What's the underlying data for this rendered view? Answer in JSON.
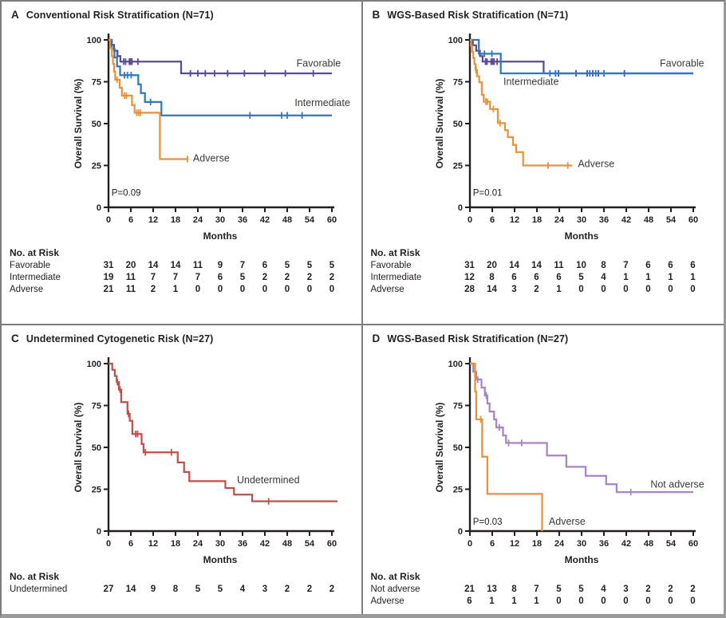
{
  "chart_data": [
    {
      "panel_label": "A",
      "title": "Conventional Risk Stratification (N=71)",
      "type": "line",
      "subtype": "kaplan-meier",
      "xlabel": "Months",
      "ylabel": "Overall Survival (%)",
      "xlim": [
        0,
        60
      ],
      "xticks": [
        0,
        6,
        12,
        18,
        24,
        30,
        36,
        42,
        48,
        54,
        60
      ],
      "ylim": [
        0,
        100
      ],
      "yticks": [
        0,
        25,
        50,
        75,
        100
      ],
      "grid": false,
      "p_value": "P=0.09",
      "p_pos": [
        0.8,
        7
      ],
      "series": [
        {
          "name": "Favorable",
          "color": "#5b4a97",
          "steps": [
            [
              0,
              100
            ],
            [
              0.7,
              97
            ],
            [
              1.5,
              93.5
            ],
            [
              2.4,
              90.3
            ],
            [
              3.2,
              87
            ],
            [
              19.5,
              80
            ]
          ],
          "end": 60,
          "censors": [
            [
              4.1,
              87
            ],
            [
              4.6,
              87
            ],
            [
              5.6,
              87
            ],
            [
              5.9,
              87
            ],
            [
              6.3,
              87
            ],
            [
              7.9,
              87
            ],
            [
              22,
              80
            ],
            [
              24,
              80
            ],
            [
              26,
              80
            ],
            [
              28.5,
              80
            ],
            [
              32,
              80
            ],
            [
              36.5,
              80
            ],
            [
              42,
              80
            ],
            [
              47.5,
              80
            ],
            [
              55,
              80
            ]
          ],
          "label_pos": [
            50.5,
            84
          ]
        },
        {
          "name": "Intermediate",
          "color": "#2e78bf",
          "steps": [
            [
              0,
              100
            ],
            [
              0.9,
              94.7
            ],
            [
              1.6,
              89.5
            ],
            [
              2.3,
              84.2
            ],
            [
              3.1,
              78.9
            ],
            [
              8,
              73.5
            ],
            [
              8.7,
              68.2
            ],
            [
              9.8,
              62.9
            ],
            [
              14.2,
              54.9
            ]
          ],
          "end": 60,
          "censors": [
            [
              4.3,
              78.9
            ],
            [
              5.1,
              78.9
            ],
            [
              6.1,
              78.9
            ],
            [
              11.3,
              62.9
            ],
            [
              38,
              54.9
            ],
            [
              46.5,
              54.9
            ],
            [
              48,
              54.9
            ],
            [
              52,
              54.9
            ]
          ],
          "label_pos": [
            50,
            60.5
          ]
        },
        {
          "name": "Adverse",
          "color": "#e8923e",
          "steps": [
            [
              0,
              100
            ],
            [
              0.4,
              95.2
            ],
            [
              0.9,
              90.4
            ],
            [
              1.2,
              85.7
            ],
            [
              1.5,
              81
            ],
            [
              1.8,
              76.2
            ],
            [
              3,
              71.4
            ],
            [
              3.6,
              66.7
            ],
            [
              6.3,
              61.1
            ],
            [
              7,
              56.5
            ],
            [
              13.8,
              28.8
            ]
          ],
          "end": 21.5,
          "censors": [
            [
              2.3,
              76.2
            ],
            [
              4.3,
              66.7
            ],
            [
              4.8,
              66.7
            ],
            [
              7.6,
              56.5
            ],
            [
              8.1,
              56.5
            ],
            [
              8.6,
              56.5
            ],
            [
              21.2,
              28.8
            ]
          ],
          "label_pos": [
            22.7,
            27.5
          ]
        }
      ],
      "risk_table": {
        "heading": "No. at Risk",
        "rows": [
          {
            "label": "Favorable",
            "values": [
              31,
              20,
              14,
              14,
              11,
              9,
              7,
              6,
              5,
              5,
              5
            ]
          },
          {
            "label": "Intermediate",
            "values": [
              19,
              11,
              7,
              7,
              7,
              6,
              5,
              2,
              2,
              2,
              2
            ]
          },
          {
            "label": "Adverse",
            "values": [
              21,
              11,
              2,
              1,
              0,
              0,
              0,
              0,
              0,
              0,
              0
            ]
          }
        ]
      }
    },
    {
      "panel_label": "B",
      "title": "WGS-Based Risk Stratification (N=71)",
      "type": "line",
      "subtype": "kaplan-meier",
      "xlabel": "Months",
      "ylabel": "Overall Survival (%)",
      "xlim": [
        0,
        60
      ],
      "xticks": [
        0,
        6,
        12,
        18,
        24,
        30,
        36,
        42,
        48,
        54,
        60
      ],
      "ylim": [
        0,
        100
      ],
      "yticks": [
        0,
        25,
        50,
        75,
        100
      ],
      "grid": false,
      "p_value": "P=0.01",
      "p_pos": [
        0.8,
        7
      ],
      "series": [
        {
          "name": "Favorable",
          "color": "#5b4a97",
          "steps": [
            [
              0,
              100
            ],
            [
              0.8,
              96.8
            ],
            [
              1.7,
              93.5
            ],
            [
              2.7,
              90.3
            ],
            [
              3.4,
              87
            ],
            [
              19.8,
              80
            ]
          ],
          "end": 60,
          "censors": [
            [
              4.2,
              87
            ],
            [
              4.6,
              87
            ],
            [
              5.7,
              87
            ],
            [
              6.1,
              87
            ],
            [
              6.5,
              87
            ],
            [
              7.3,
              87
            ],
            [
              23.8,
              80
            ],
            [
              28.5,
              80
            ],
            [
              31.5,
              80
            ],
            [
              33,
              80
            ],
            [
              34.5,
              80
            ],
            [
              41.5,
              80
            ]
          ],
          "label_pos": [
            51,
            84
          ]
        },
        {
          "name": "Intermediate",
          "color": "#2e78bf",
          "steps": [
            [
              0,
              100
            ],
            [
              2.4,
              91.7
            ],
            [
              8.3,
              80
            ]
          ],
          "end": 60,
          "censors": [
            [
              3.9,
              91.7
            ],
            [
              5.9,
              91.7
            ],
            [
              21.5,
              80
            ],
            [
              23,
              80
            ],
            [
              32.2,
              80
            ],
            [
              33.8,
              80
            ],
            [
              36,
              80
            ]
          ],
          "label_pos": [
            9,
            73
          ]
        },
        {
          "name": "Adverse",
          "color": "#e8923e",
          "steps": [
            [
              0,
              100
            ],
            [
              0.3,
              96.4
            ],
            [
              0.6,
              92.8
            ],
            [
              0.9,
              89.2
            ],
            [
              1.2,
              85.6
            ],
            [
              1.5,
              81.9
            ],
            [
              1.9,
              78.3
            ],
            [
              2.5,
              74.6
            ],
            [
              3.2,
              67.2
            ],
            [
              3.7,
              63.1
            ],
            [
              5.4,
              58.7
            ],
            [
              7.5,
              50.3
            ],
            [
              9.4,
              46.1
            ],
            [
              10.2,
              41.9
            ],
            [
              11.6,
              37.3
            ],
            [
              12.4,
              33
            ],
            [
              14.3,
              25
            ]
          ],
          "end": 27.5,
          "censors": [
            [
              1.7,
              81.9
            ],
            [
              4.3,
              63.1
            ],
            [
              4.7,
              63.1
            ],
            [
              6.3,
              58.7
            ],
            [
              8.1,
              50.3
            ],
            [
              21,
              25
            ],
            [
              26.3,
              25
            ]
          ],
          "label_pos": [
            29,
            24
          ]
        }
      ],
      "risk_table": {
        "heading": "No. at Risk",
        "rows": [
          {
            "label": "Favorable",
            "values": [
              31,
              20,
              14,
              14,
              11,
              10,
              8,
              7,
              6,
              6,
              6
            ]
          },
          {
            "label": "Intermediate",
            "values": [
              12,
              8,
              6,
              6,
              6,
              5,
              4,
              1,
              1,
              1,
              1
            ]
          },
          {
            "label": "Adverse",
            "values": [
              28,
              14,
              3,
              2,
              1,
              0,
              0,
              0,
              0,
              0,
              0
            ]
          }
        ]
      }
    },
    {
      "panel_label": "C",
      "title": "Undetermined Cytogenetic Risk (N=27)",
      "type": "line",
      "subtype": "kaplan-meier",
      "xlabel": "Months",
      "ylabel": "Overall Survival (%)",
      "xlim": [
        0,
        60
      ],
      "xticks": [
        0,
        6,
        12,
        18,
        24,
        30,
        36,
        42,
        48,
        54,
        60
      ],
      "ylim": [
        0,
        100
      ],
      "yticks": [
        0,
        25,
        50,
        75,
        100
      ],
      "grid": false,
      "p_value": "",
      "p_pos": [
        0.8,
        7
      ],
      "series": [
        {
          "name": "Undetermined",
          "color": "#c0504a",
          "steps": [
            [
              0,
              100
            ],
            [
              1,
              96.3
            ],
            [
              1.7,
              92.6
            ],
            [
              2.2,
              88.9
            ],
            [
              2.8,
              84.5
            ],
            [
              3.4,
              77
            ],
            [
              5.1,
              70
            ],
            [
              5.7,
              65.9
            ],
            [
              6.4,
              58
            ],
            [
              8.9,
              52
            ],
            [
              9.4,
              47
            ],
            [
              18.6,
              41
            ],
            [
              20.3,
              35.3
            ],
            [
              21.7,
              29.8
            ],
            [
              31.4,
              25.7
            ],
            [
              33.7,
              21.8
            ],
            [
              38.6,
              17.8
            ]
          ],
          "end": 61.5,
          "censors": [
            [
              2.4,
              88.9
            ],
            [
              3.1,
              84.5
            ],
            [
              5.4,
              70
            ],
            [
              7.3,
              58
            ],
            [
              7.8,
              58
            ],
            [
              9.9,
              47
            ],
            [
              16.9,
              47
            ],
            [
              43,
              17.8
            ]
          ],
          "label_pos": [
            34.5,
            28.5
          ]
        }
      ],
      "risk_table": {
        "heading": "No. at Risk",
        "rows": [
          {
            "label": "Undetermined",
            "values": [
              27,
              14,
              9,
              8,
              5,
              5,
              4,
              3,
              2,
              2,
              2
            ]
          }
        ]
      }
    },
    {
      "panel_label": "D",
      "title": "WGS-Based Risk Stratification (N=27)",
      "type": "line",
      "subtype": "kaplan-meier",
      "xlabel": "Months",
      "ylabel": "Overall Survival (%)",
      "xlim": [
        0,
        60
      ],
      "xticks": [
        0,
        6,
        12,
        18,
        24,
        30,
        36,
        42,
        48,
        54,
        60
      ],
      "ylim": [
        0,
        100
      ],
      "yticks": [
        0,
        25,
        50,
        75,
        100
      ],
      "grid": false,
      "p_value": "P=0.03",
      "p_pos": [
        0.8,
        3.8
      ],
      "series": [
        {
          "name": "Not adverse",
          "color": "#a585c5",
          "steps": [
            [
              0,
              100
            ],
            [
              0.9,
              95.2
            ],
            [
              1.7,
              90.5
            ],
            [
              3.1,
              85.7
            ],
            [
              4,
              81
            ],
            [
              4.7,
              76.2
            ],
            [
              5.3,
              71.4
            ],
            [
              6.5,
              66.7
            ],
            [
              7.1,
              61.9
            ],
            [
              8.9,
              57.1
            ],
            [
              9.7,
              52.6
            ],
            [
              20.7,
              45.1
            ],
            [
              25.9,
              38.4
            ],
            [
              31.1,
              33
            ],
            [
              36.6,
              28
            ],
            [
              39.4,
              23.3
            ]
          ],
          "end": 60,
          "censors": [
            [
              2.1,
              90.5
            ],
            [
              4.4,
              81
            ],
            [
              7.9,
              61.9
            ],
            [
              10.4,
              52.6
            ],
            [
              13.9,
              52.6
            ],
            [
              43.2,
              23.3
            ]
          ],
          "label_pos": [
            48.5,
            26
          ]
        },
        {
          "name": "Adverse",
          "color": "#e8923e",
          "steps": [
            [
              0,
              100
            ],
            [
              1.4,
              83.3
            ],
            [
              1.7,
              66.7
            ],
            [
              3.3,
              44.4
            ],
            [
              4.7,
              22.2
            ],
            [
              19.4,
              0
            ]
          ],
          "end": 19.4,
          "censors": [
            [
              2.9,
              66.7
            ]
          ],
          "label_pos": [
            21.2,
            3.8
          ]
        }
      ],
      "risk_table": {
        "heading": "No. at Risk",
        "rows": [
          {
            "label": "Not adverse",
            "values": [
              21,
              13,
              8,
              7,
              5,
              5,
              4,
              3,
              2,
              2,
              2
            ]
          },
          {
            "label": "Adverse",
            "values": [
              6,
              1,
              1,
              1,
              0,
              0,
              0,
              0,
              0,
              0,
              0
            ]
          }
        ]
      }
    }
  ]
}
